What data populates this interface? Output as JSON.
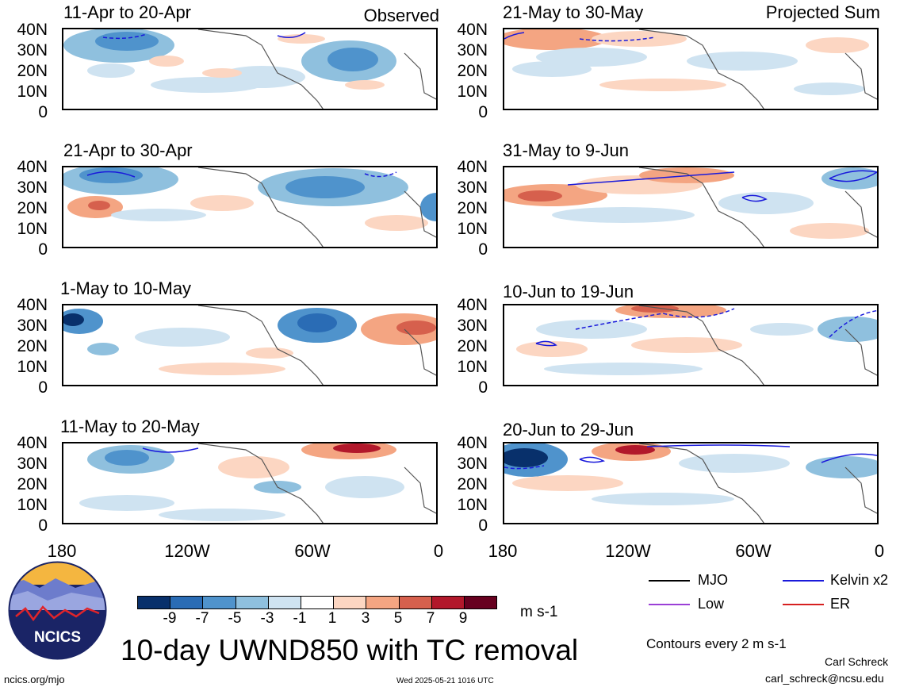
{
  "header": {
    "observed_label": "Observed",
    "projected_label": "Projected Sum"
  },
  "panels_left": [
    {
      "title": "11-Apr to 20-Apr"
    },
    {
      "title": "21-Apr to 30-Apr"
    },
    {
      "title": "1-May to 10-May"
    },
    {
      "title": "11-May to 20-May"
    }
  ],
  "panels_right": [
    {
      "title": "21-May to 30-May"
    },
    {
      "title": "31-May to 9-Jun"
    },
    {
      "title": "10-Jun to 19-Jun"
    },
    {
      "title": "20-Jun to 29-Jun"
    }
  ],
  "y_ticks": [
    "40N",
    "30N",
    "20N",
    "10N",
    "0"
  ],
  "x_ticks": [
    "180",
    "120W",
    "60W",
    "0"
  ],
  "legend": {
    "items": [
      {
        "label": "MJO",
        "color": "#000000"
      },
      {
        "label": "Kelvin x2",
        "color": "#1a1adb"
      },
      {
        "label": "Low",
        "color": "#9b3fd6"
      },
      {
        "label": "ER",
        "color": "#d62020"
      }
    ],
    "contour_note": "Contours every 2 m s-1"
  },
  "colorbar": {
    "labels": [
      "-9",
      "-7",
      "-5",
      "-3",
      "-1",
      "1",
      "3",
      "5",
      "7",
      "9"
    ],
    "colors": [
      "#08306b",
      "#2a6cb5",
      "#4f93cc",
      "#8fc0de",
      "#cfe3f1",
      "#ffffff",
      "#fcd6c2",
      "#f4a582",
      "#d6604d",
      "#b2182b",
      "#67001f"
    ],
    "units": "m s-1"
  },
  "logo": {
    "text": "NCICS"
  },
  "main_title": "10-day UWND850 with TC removal",
  "footer": {
    "url": "ncics.org/mjo",
    "timestamp": "Wed 2025-05-21 1016 UTC",
    "author": "Carl Schreck",
    "email": "carl_schreck@ncsu.edu"
  }
}
